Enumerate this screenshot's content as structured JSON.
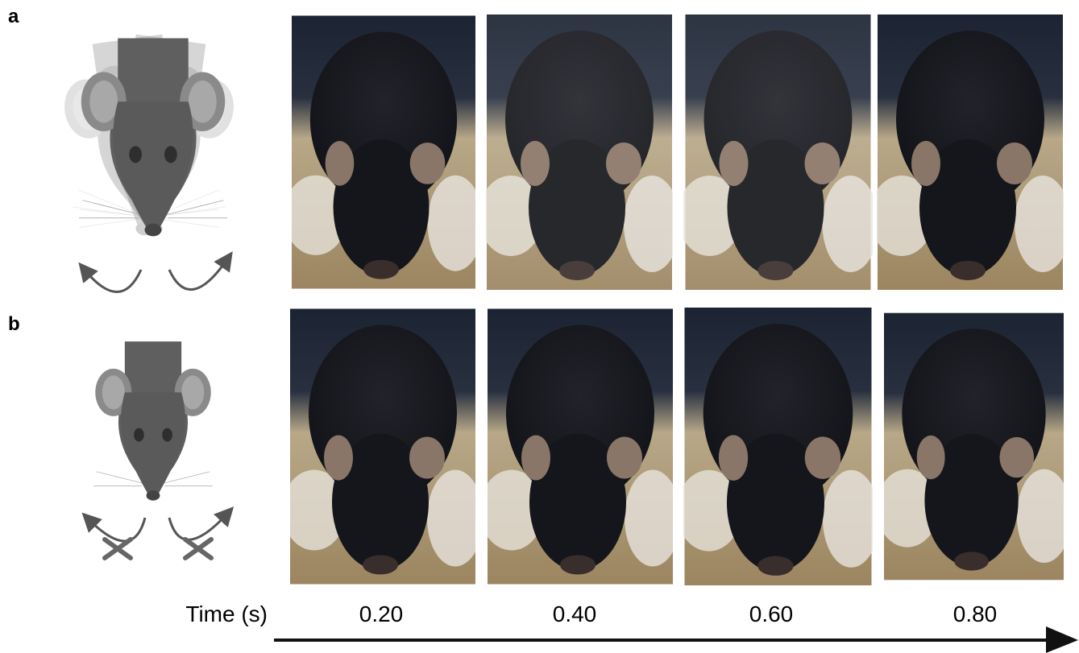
{
  "panels": [
    {
      "label": "a"
    },
    {
      "label": "b"
    }
  ],
  "axis": {
    "label": "Time (s)",
    "times": [
      "0.20",
      "0.40",
      "0.60",
      "0.80"
    ]
  }
}
